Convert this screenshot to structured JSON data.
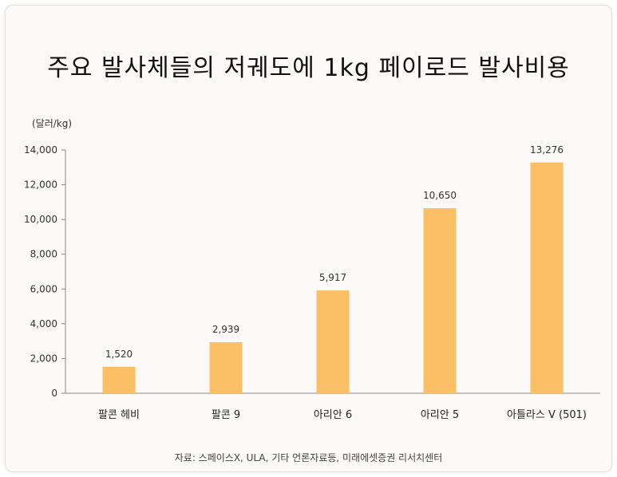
{
  "chart_data": {
    "type": "bar",
    "title": "주요 발사체들의 저궤도에 1kg 페이로드 발사비용",
    "unit_label": "(달러/kg)",
    "categories": [
      "팔콘 헤비",
      "팔콘 9",
      "아리안 6",
      "아리안 5",
      "아틀라스 V (501)"
    ],
    "values": [
      1520,
      2939,
      5917,
      10650,
      13276
    ],
    "value_labels": [
      "1,520",
      "2,939",
      "5,917",
      "10,650",
      "13,276"
    ],
    "ylim": [
      0,
      14000
    ],
    "y_ticks": [
      0,
      2000,
      4000,
      6000,
      8000,
      10000,
      12000,
      14000
    ],
    "y_tick_labels": [
      "0",
      "2,000",
      "4,000",
      "6,000",
      "8,000",
      "10,000",
      "12,000",
      "14,000"
    ],
    "bar_color": "#fbbf66",
    "grid": false,
    "legend": "none"
  },
  "source": "자료: 스페이스X, ULA, 기타 언론자료등, 미래에셋증권 리서치센터"
}
